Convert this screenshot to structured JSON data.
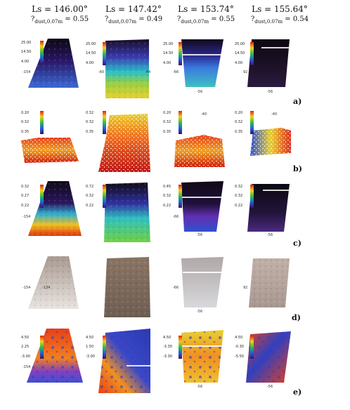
{
  "columns": [
    {
      "ls": "Ls = 146.00°",
      "tau_prefix": "?",
      "tau_sub": "dust,0.07m",
      "tau_value": " = 0.55"
    },
    {
      "ls": "Ls = 147.42°",
      "tau_prefix": "?",
      "tau_sub": "dust,0.07m",
      "tau_value": " = 0.49"
    },
    {
      "ls": "Ls = 153.74°",
      "tau_prefix": "?",
      "tau_sub": "dust,0.07m",
      "tau_value": " = 0.55"
    },
    {
      "ls": "Ls = 155.64°",
      "tau_prefix": "?",
      "tau_sub": "dust,0.07m",
      "tau_value": " = 0.54"
    }
  ],
  "rows": [
    {
      "label": "a)",
      "colorbar_ticks": [
        [
          "25.00",
          "14.50",
          "4.00"
        ],
        [
          "25.00",
          "14.50",
          "4.00"
        ],
        [
          "25.00",
          "14.50",
          "4.00"
        ],
        [
          "25.00",
          "14.50",
          "4.00"
        ]
      ]
    },
    {
      "label": "b)",
      "colorbar_ticks": [
        [
          "0.20",
          "0.32",
          "0.35"
        ],
        [
          "0.32",
          "0.32",
          "0.35"
        ],
        [
          "0.20",
          "0.32",
          "0.35"
        ],
        [
          "0.20",
          "0.32",
          "0.35"
        ]
      ]
    },
    {
      "label": "c)",
      "colorbar_ticks": [
        [
          "0.32",
          "0.27",
          "0.22"
        ],
        [
          "0.72",
          "0.32",
          "0.22"
        ],
        [
          "0.45",
          "0.32",
          "0.22"
        ],
        [
          "0.32",
          "0.32",
          "0.22"
        ]
      ]
    },
    {
      "label": "d)",
      "colorbar_ticks": [
        [],
        [],
        [],
        []
      ]
    },
    {
      "label": "e)",
      "colorbar_ticks": [
        [
          "4.50",
          "2.25",
          "-3.00"
        ],
        [
          "4.50",
          "1.50",
          "-3.00"
        ],
        [
          "4.50",
          "-3.30",
          "-3.30"
        ],
        [
          "4.50",
          "-0.30",
          "-5.50"
        ]
      ]
    }
  ],
  "grid_labels": {
    "lat": [
      "-40",
      "-44",
      "-48",
      "-52",
      "-56",
      "-60",
      "-64"
    ],
    "lon": [
      "-154",
      "-144",
      "-134",
      "-124",
      "-60",
      "-56",
      "-66",
      "-44",
      "92",
      "-38"
    ]
  },
  "colors": {
    "background": "#ffffff",
    "surface_dark": "#1a1018",
    "cold": "#2a1a6e"
  }
}
